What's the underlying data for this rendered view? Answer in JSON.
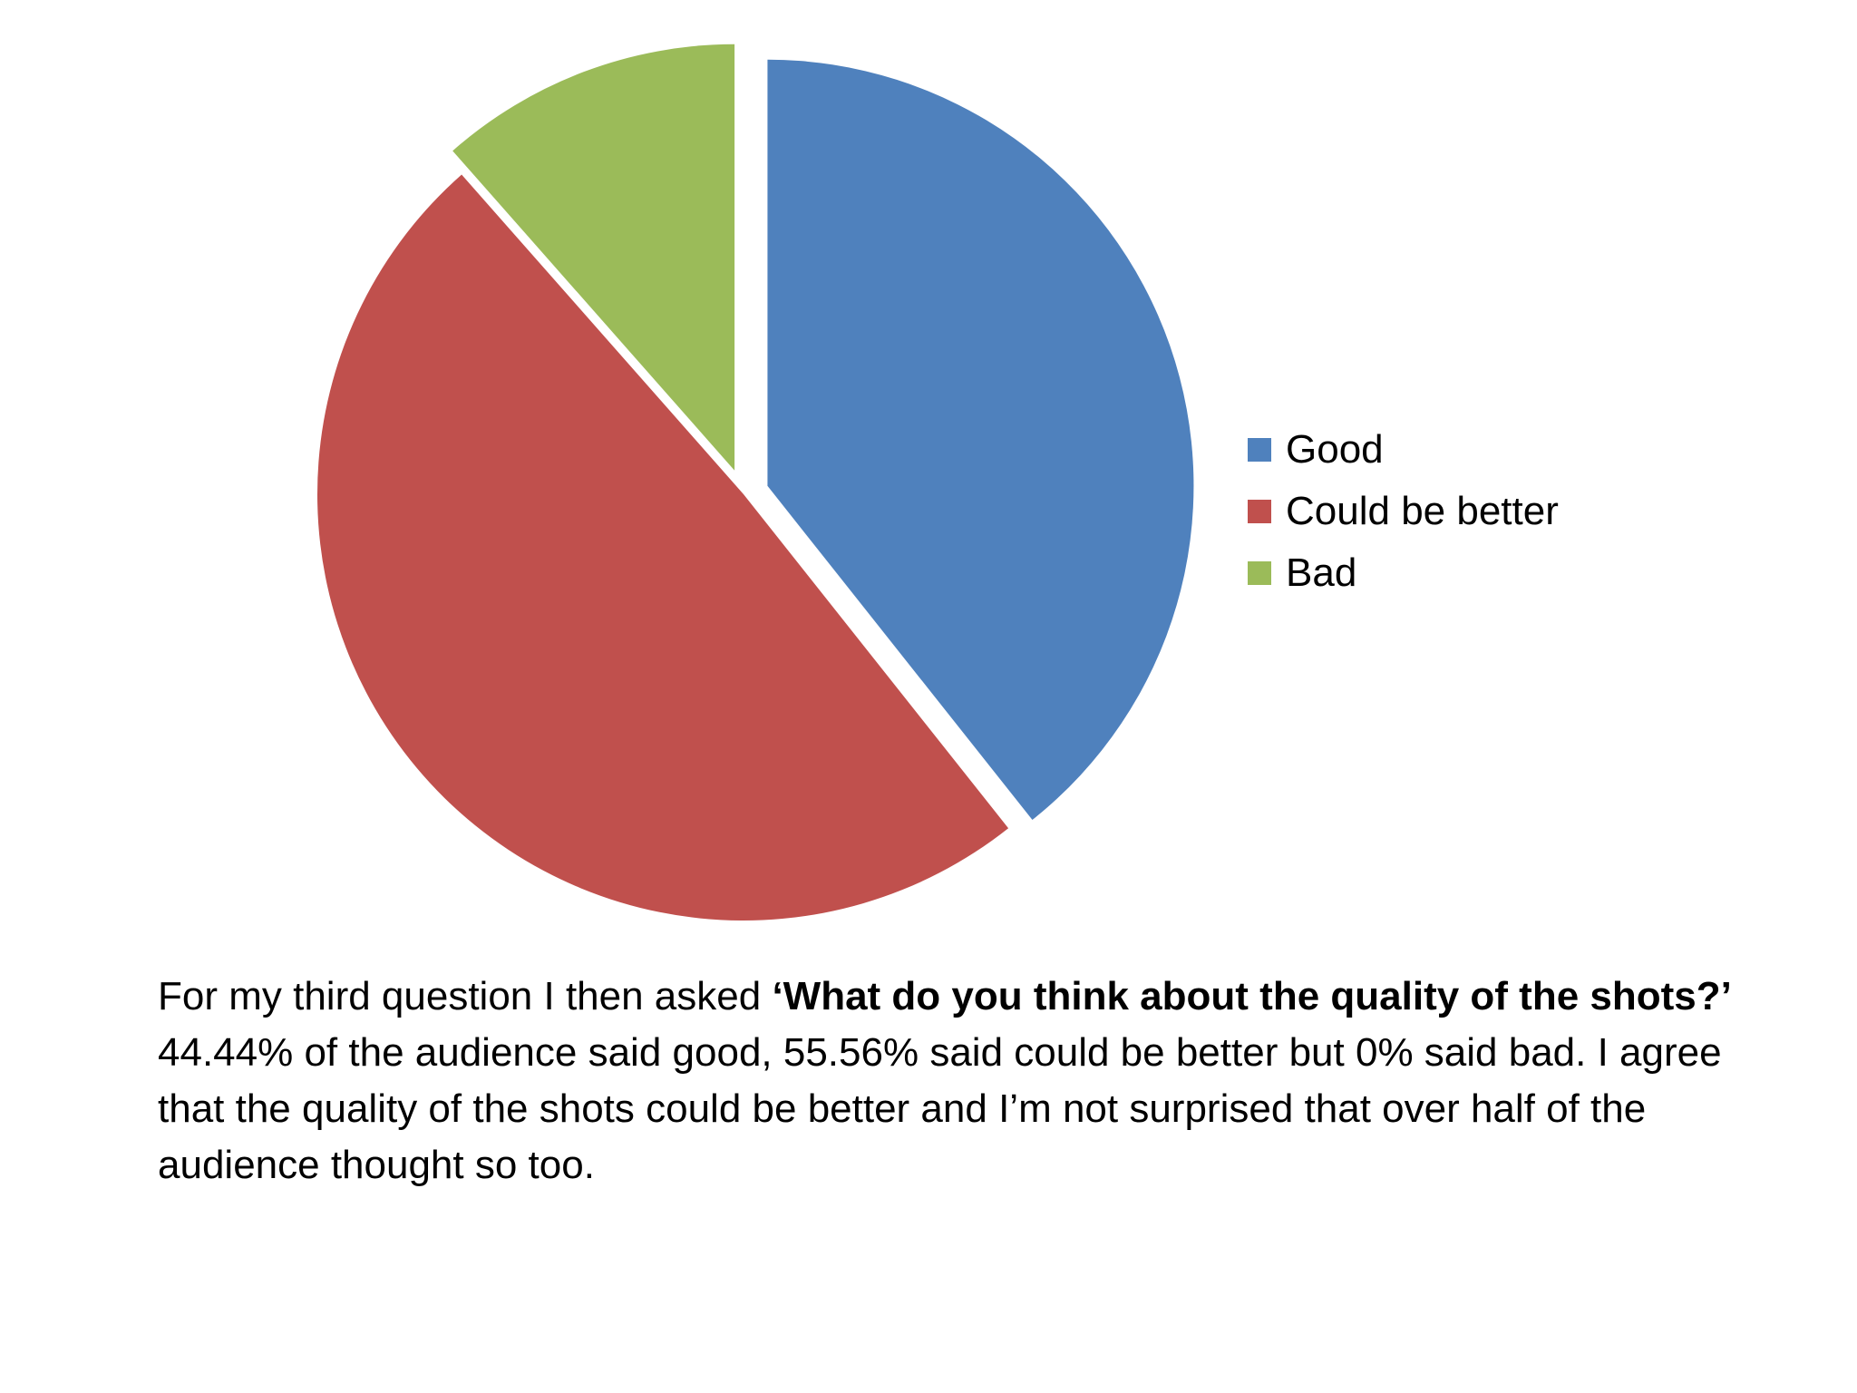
{
  "chart_data": {
    "type": "pie",
    "title": "",
    "slices": [
      {
        "label": "Good",
        "value": 44.44,
        "color": "#4F81BD",
        "exploded": true
      },
      {
        "label": "Could be better",
        "value": 55.56,
        "color": "#C0504D",
        "exploded": false
      },
      {
        "label": "Bad",
        "value": 0,
        "color": "#9BBB59",
        "exploded": true
      }
    ],
    "legend": {
      "position": "right"
    }
  },
  "caption": {
    "intro": "For my third question I then asked ",
    "question": "‘What do you think about the quality of the shots?’",
    "body": " 44.44% of the audience said good, 55.56% said could be better but 0% said bad. I agree that the quality of the shots could be better and I’m not surprised that over half of the audience thought so too."
  }
}
